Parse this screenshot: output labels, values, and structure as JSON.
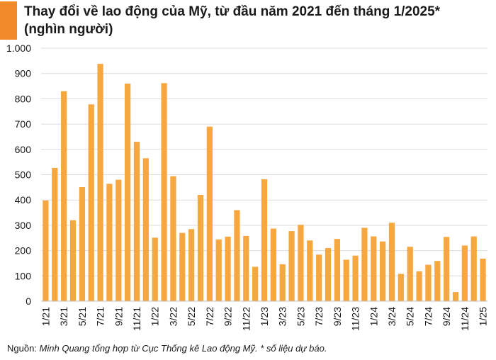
{
  "chart_data": {
    "type": "bar",
    "title": "Thay đổi về lao động của Mỹ, từ đầu năm 2021 đến tháng 1/2025*",
    "subtitle": "(nghìn người)",
    "xlabel": "",
    "ylabel": "",
    "ylim": [
      0,
      1000
    ],
    "yticks": [
      0,
      100,
      200,
      300,
      400,
      500,
      600,
      700,
      800,
      900,
      1000
    ],
    "ytick_labels": [
      "0",
      "100",
      "200",
      "300",
      "400",
      "500",
      "600",
      "700",
      "800",
      "900",
      "1.000"
    ],
    "grid": true,
    "bar_color": "#f7a740",
    "categories": [
      "1/21",
      "2/21",
      "3/21",
      "4/21",
      "5/21",
      "6/21",
      "7/21",
      "8/21",
      "9/21",
      "10/21",
      "11/21",
      "12/21",
      "1/22",
      "2/22",
      "3/22",
      "4/22",
      "5/22",
      "6/22",
      "7/22",
      "8/22",
      "9/22",
      "10/22",
      "11/22",
      "12/22",
      "1/23",
      "2/23",
      "3/23",
      "4/23",
      "5/23",
      "6/23",
      "7/23",
      "8/23",
      "9/23",
      "10/23",
      "11/23",
      "12/23",
      "1/24",
      "2/24",
      "3/24",
      "4/24",
      "5/24",
      "6/24",
      "7/24",
      "8/24",
      "9/24",
      "10/24",
      "11/24",
      "12/24",
      "1/25"
    ],
    "values": [
      398,
      527,
      830,
      320,
      451,
      778,
      938,
      464,
      480,
      860,
      630,
      565,
      251,
      862,
      494,
      270,
      285,
      420,
      690,
      244,
      255,
      360,
      258,
      136,
      482,
      287,
      146,
      277,
      302,
      240,
      184,
      210,
      246,
      164,
      180,
      290,
      256,
      236,
      310,
      108,
      215,
      118,
      144,
      159,
      254,
      36,
      220,
      256,
      168
    ],
    "tick_labels": [
      "1/21",
      "3/21",
      "5/21",
      "7/21",
      "9/21",
      "11/21",
      "1/22",
      "3/22",
      "5/22",
      "7/22",
      "9/22",
      "11/22",
      "1/23",
      "3/23",
      "5/23",
      "7/23",
      "9/23",
      "11/23",
      "1/24",
      "3/24",
      "5/24",
      "7/24",
      "9/24",
      "11/24",
      "1/25"
    ]
  },
  "footer": {
    "source_label": "Nguồn: ",
    "source_text": "Minh Quang tổng hợp từ Cục Thống kê Lao động Mỹ. * số liệu dự báo."
  }
}
